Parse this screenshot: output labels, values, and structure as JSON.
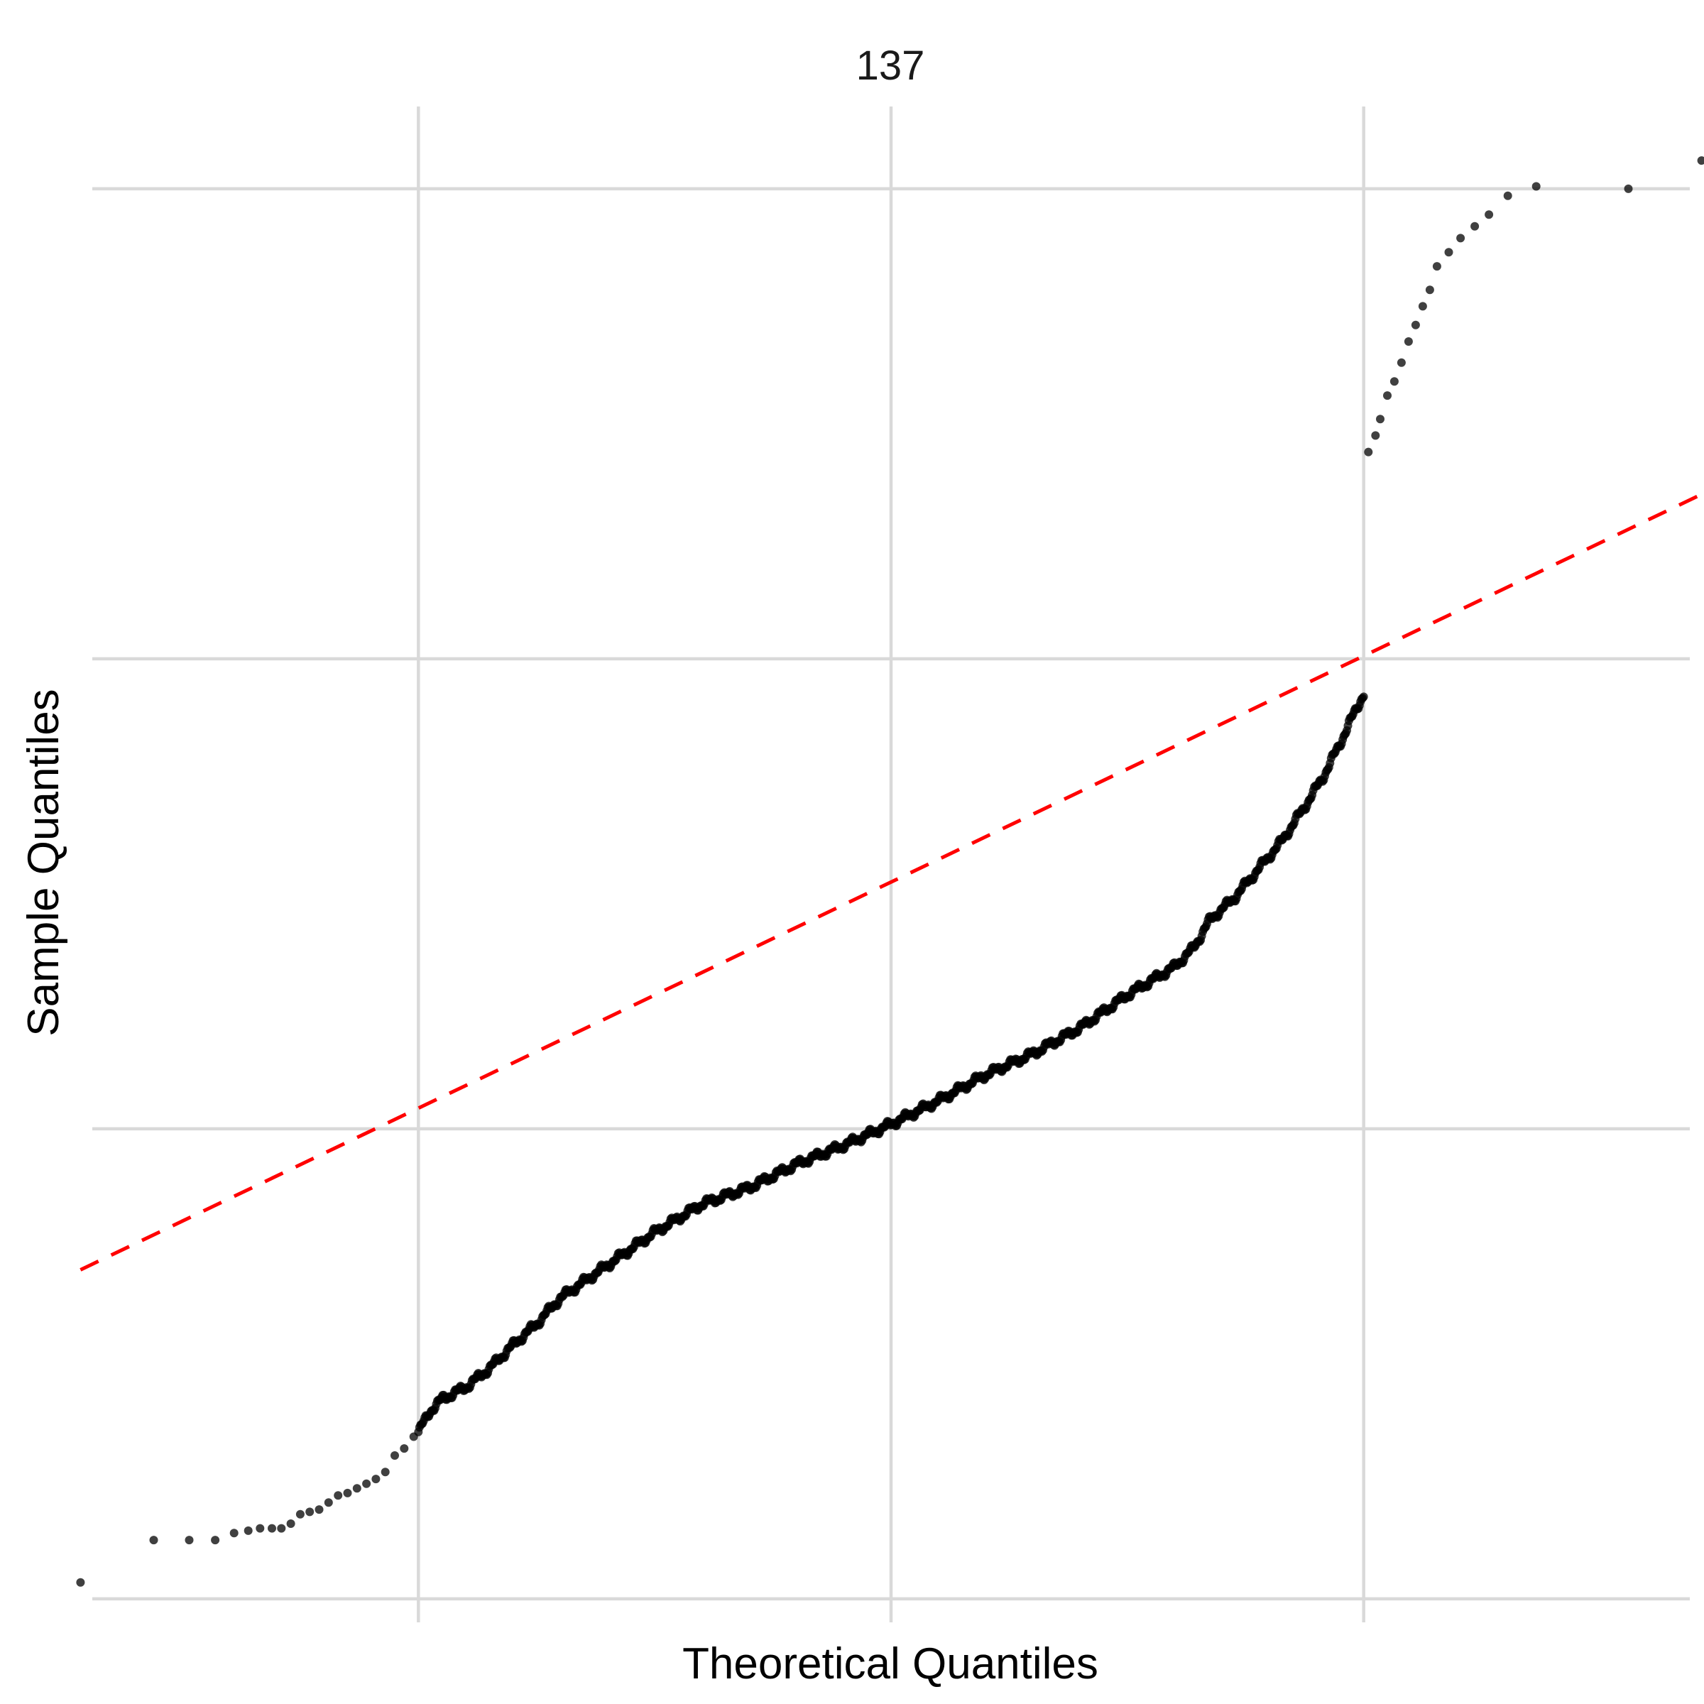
{
  "chart_data": {
    "type": "scatter",
    "title": "137",
    "xlabel": "Theoretical Quantiles",
    "ylabel": "Sample Quantiles",
    "xlim": [
      -3.38,
      3.38
    ],
    "ylim": [
      -3.1,
      3.35
    ],
    "x_gridlines": [
      -2,
      0,
      2
    ],
    "y_gridlines": [
      -3,
      -1,
      1,
      3
    ],
    "grid": true,
    "tick_labels_shown": false,
    "reference_line": {
      "style": "dashed",
      "color": "#ff0000",
      "x": [
        -3.43,
        3.43
      ],
      "y": [
        -1.6,
        1.7
      ]
    },
    "points": {
      "color": "#000000",
      "n": 1000,
      "tail_points": [
        [
          -3.43,
          -2.93
        ],
        [
          -3.12,
          -2.75
        ],
        [
          -2.97,
          -2.75
        ],
        [
          -2.86,
          -2.75
        ],
        [
          -2.78,
          -2.72
        ],
        [
          -2.72,
          -2.71
        ],
        [
          -2.67,
          -2.7
        ],
        [
          -2.62,
          -2.7
        ],
        [
          -2.58,
          -2.7
        ],
        [
          -2.54,
          -2.68
        ],
        [
          -2.5,
          -2.64
        ],
        [
          -2.46,
          -2.63
        ],
        [
          -2.42,
          -2.62
        ],
        [
          -2.38,
          -2.59
        ],
        [
          -2.34,
          -2.56
        ],
        [
          -2.3,
          -2.55
        ],
        [
          -2.26,
          -2.53
        ],
        [
          -2.22,
          -2.51
        ],
        [
          -2.18,
          -2.49
        ],
        [
          -2.14,
          -2.46
        ],
        [
          -2.1,
          -2.39
        ],
        [
          -2.06,
          -2.36
        ],
        [
          -2.02,
          -2.31
        ],
        [
          2.02,
          1.88
        ],
        [
          2.05,
          1.95
        ],
        [
          2.07,
          2.02
        ],
        [
          2.1,
          2.12
        ],
        [
          2.13,
          2.18
        ],
        [
          2.16,
          2.26
        ],
        [
          2.19,
          2.35
        ],
        [
          2.22,
          2.42
        ],
        [
          2.25,
          2.5
        ],
        [
          2.28,
          2.57
        ],
        [
          2.31,
          2.67
        ],
        [
          2.36,
          2.73
        ],
        [
          2.41,
          2.79
        ],
        [
          2.47,
          2.84
        ],
        [
          2.53,
          2.89
        ],
        [
          2.61,
          2.97
        ],
        [
          2.73,
          3.01
        ],
        [
          3.12,
          3.0
        ],
        [
          3.43,
          3.12
        ]
      ],
      "body_curve": [
        [
          -2.0,
          -2.29
        ],
        [
          -1.95,
          -2.2
        ],
        [
          -1.9,
          -2.15
        ],
        [
          -1.8,
          -2.1
        ],
        [
          -1.7,
          -2.02
        ],
        [
          -1.6,
          -1.92
        ],
        [
          -1.5,
          -1.83
        ],
        [
          -1.4,
          -1.72
        ],
        [
          -1.3,
          -1.65
        ],
        [
          -1.2,
          -1.58
        ],
        [
          -1.0,
          -1.44
        ],
        [
          -0.8,
          -1.32
        ],
        [
          -0.6,
          -1.25
        ],
        [
          -0.4,
          -1.15
        ],
        [
          -0.2,
          -1.07
        ],
        [
          0.0,
          -0.98
        ],
        [
          0.2,
          -0.88
        ],
        [
          0.4,
          -0.77
        ],
        [
          0.6,
          -0.68
        ],
        [
          0.8,
          -0.57
        ],
        [
          1.0,
          -0.43
        ],
        [
          1.1,
          -0.37
        ],
        [
          1.2,
          -0.31
        ],
        [
          1.28,
          -0.23
        ],
        [
          1.35,
          -0.11
        ],
        [
          1.45,
          -0.02
        ],
        [
          1.55,
          0.1
        ],
        [
          1.65,
          0.22
        ],
        [
          1.75,
          0.37
        ],
        [
          1.83,
          0.5
        ],
        [
          1.9,
          0.64
        ],
        [
          1.96,
          0.77
        ],
        [
          2.0,
          0.85
        ]
      ]
    }
  }
}
